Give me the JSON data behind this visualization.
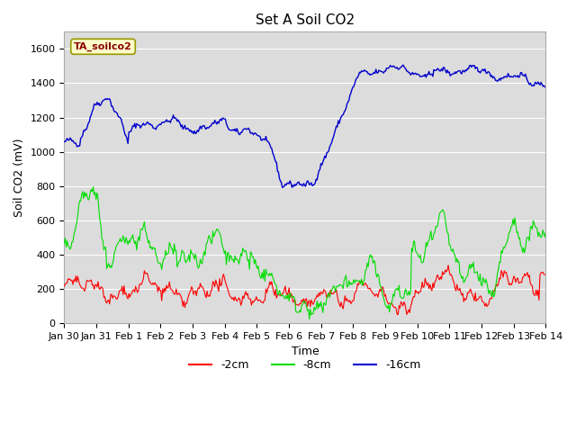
{
  "title": "Set A Soil CO2",
  "ylabel": "Soil CO2 (mV)",
  "xlabel": "Time",
  "annotation": "TA_soilco2",
  "ylim": [
    0,
    1700
  ],
  "yticks": [
    0,
    200,
    400,
    600,
    800,
    1000,
    1200,
    1400,
    1600
  ],
  "xtick_labels": [
    "Jan 30",
    "Jan 31",
    "Feb 1",
    "Feb 2",
    "Feb 3",
    "Feb 4",
    "Feb 5",
    "Feb 6",
    "Feb 7",
    "Feb 8",
    "Feb 9",
    "Feb 10",
    "Feb 11",
    "Feb 12",
    "Feb 13",
    "Feb 14"
  ],
  "color_2cm": "#ff0000",
  "color_8cm": "#00dd00",
  "color_16cm": "#0000cc",
  "background_color": "#dcdcdc",
  "legend_labels": [
    "-2cm",
    "-8cm",
    "-16cm"
  ],
  "num_points": 500,
  "figsize": [
    6.4,
    4.8
  ],
  "dpi": 100
}
